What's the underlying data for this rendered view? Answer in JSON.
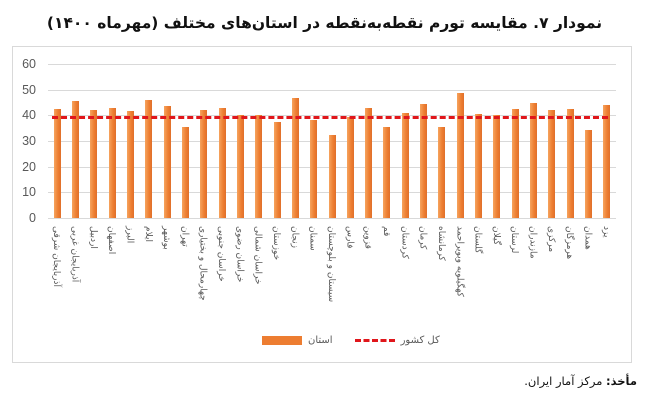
{
  "title": "نمودار ۷. مقایسه تورم نقطه‌به‌نقطه در استان‌های مختلف (مهرماه ۱۴۰۰)",
  "legend": {
    "province_label": "استان",
    "national_label": "کل کشور"
  },
  "source": {
    "label": "مأخذ:",
    "text": "مرکز آمار ایران."
  },
  "colors": {
    "bar": "#ed7d31",
    "national_line": "#e0161b",
    "grid": "#d9d9d9"
  },
  "chart_data": {
    "type": "bar",
    "title": "نمودار ۷. مقایسه تورم نقطه‌به‌نقطه در استان‌های مختلف (مهرماه ۱۴۰۰)",
    "xlabel": "",
    "ylabel": "",
    "ylim": [
      0,
      60
    ],
    "yticks": [
      0,
      10,
      20,
      30,
      40,
      50,
      60
    ],
    "grid": true,
    "legend_position": "bottom",
    "categories": [
      "آذربایجان شرقی",
      "آذربایجان غربی",
      "اردبیل",
      "اصفهان",
      "البرز",
      "ایلام",
      "بوشهر",
      "تهران",
      "چهارمحال و بختیاری",
      "خراسان جنوبی",
      "خراسان رضوی",
      "خراسان شمالی",
      "خوزستان",
      "زنجان",
      "سمنان",
      "سیستان و بلوچستان",
      "فارس",
      "قزوین",
      "قم",
      "کردستان",
      "کرمان",
      "کرمانشاه",
      "کهگیلویه وبویراحمد",
      "گلستان",
      "گیلان",
      "لرستان",
      "مازندران",
      "مرکزی",
      "هرمزگان",
      "همدان",
      "یزد"
    ],
    "series": [
      {
        "name": "استان",
        "type": "bar",
        "values": [
          42.3,
          45.4,
          41.9,
          43.0,
          41.5,
          45.8,
          43.5,
          35.3,
          42.0,
          42.7,
          40.2,
          40.0,
          37.5,
          46.8,
          38.0,
          32.5,
          39.5,
          43.0,
          35.5,
          41.0,
          44.3,
          35.5,
          48.8,
          40.5,
          40.0,
          42.3,
          45.0,
          42.0,
          42.5,
          34.3,
          44.2
        ]
      },
      {
        "name": "کل کشور",
        "type": "line",
        "style": "dashed",
        "value": 39.2
      }
    ]
  }
}
